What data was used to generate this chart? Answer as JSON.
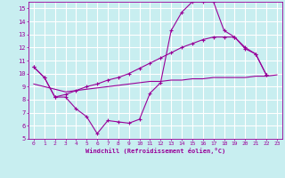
{
  "background_color": "#c8eef0",
  "grid_color": "#ffffff",
  "line_color": "#990099",
  "xlabel": "Windchill (Refroidissement éolien,°C)",
  "tick_color": "#990099",
  "xlim": [
    -0.5,
    23.5
  ],
  "ylim": [
    5,
    15.5
  ],
  "yticks": [
    5,
    6,
    7,
    8,
    9,
    10,
    11,
    12,
    13,
    14,
    15
  ],
  "xticks": [
    0,
    1,
    2,
    3,
    4,
    5,
    6,
    7,
    8,
    9,
    10,
    11,
    12,
    13,
    14,
    15,
    16,
    17,
    18,
    19,
    20,
    21,
    22,
    23
  ],
  "line1_x": [
    0,
    1,
    2,
    3,
    4,
    5,
    6,
    7,
    8,
    9,
    10,
    11,
    12,
    13,
    14,
    15,
    16,
    17,
    18,
    19,
    20,
    21,
    22
  ],
  "line1_y": [
    10.5,
    9.7,
    8.2,
    8.2,
    7.3,
    6.7,
    5.4,
    6.4,
    6.3,
    6.2,
    6.5,
    8.5,
    9.3,
    13.3,
    14.7,
    15.5,
    15.5,
    15.5,
    13.3,
    12.8,
    11.9,
    11.5,
    9.9
  ],
  "line2_x": [
    0,
    1,
    2,
    3,
    4,
    5,
    6,
    7,
    8,
    9,
    10,
    11,
    12,
    13,
    14,
    15,
    16,
    17,
    18,
    19,
    20,
    21,
    22,
    23
  ],
  "line2_y": [
    9.2,
    9.0,
    8.8,
    8.6,
    8.7,
    8.8,
    8.9,
    9.0,
    9.1,
    9.2,
    9.3,
    9.4,
    9.4,
    9.5,
    9.5,
    9.6,
    9.6,
    9.7,
    9.7,
    9.7,
    9.7,
    9.8,
    9.8,
    9.9
  ],
  "line3_x": [
    0,
    1,
    2,
    3,
    4,
    5,
    6,
    7,
    8,
    9,
    10,
    11,
    12,
    13,
    14,
    15,
    16,
    17,
    18,
    19,
    20,
    21,
    22
  ],
  "line3_y": [
    10.5,
    9.7,
    8.2,
    8.4,
    8.7,
    9.0,
    9.2,
    9.5,
    9.7,
    10.0,
    10.4,
    10.8,
    11.2,
    11.6,
    12.0,
    12.3,
    12.6,
    12.8,
    12.8,
    12.8,
    12.0,
    11.5,
    9.9
  ]
}
